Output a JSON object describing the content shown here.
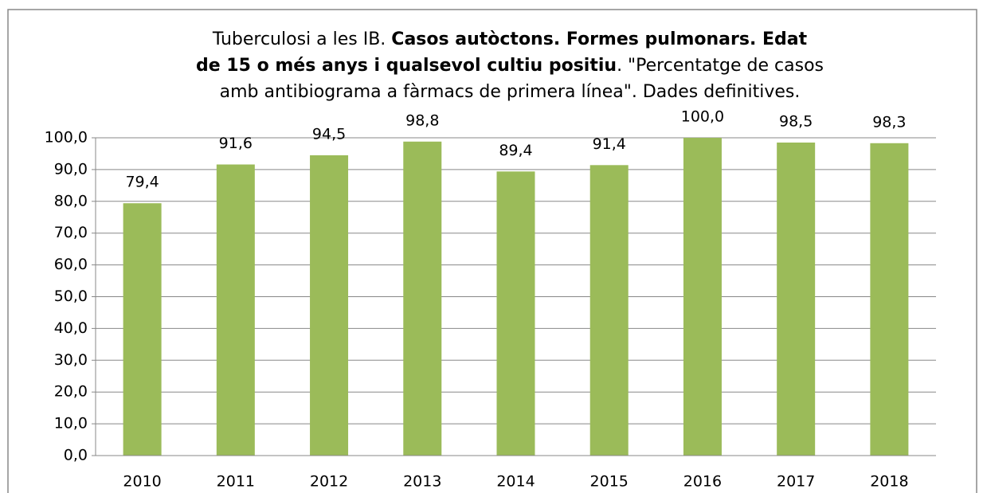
{
  "chart_data": {
    "type": "bar",
    "title_lines": [
      [
        {
          "text": "Tuberculosi a les IB. ",
          "bold": false
        },
        {
          "text": "Casos autòctons.  Formes pulmonars.  Edat",
          "bold": true
        }
      ],
      [
        {
          "text": "de 15 o més anys i qualsevol cultiu positiu",
          "bold": true
        },
        {
          "text": ". \"Percentatge de casos",
          "bold": false
        }
      ],
      [
        {
          "text": "amb antibiograma a fàrmacs de primera línea\". Dades definitives.",
          "bold": false
        }
      ]
    ],
    "categories": [
      "2010",
      "2011",
      "2012",
      "2013",
      "2014",
      "2015",
      "2016",
      "2017",
      "2018"
    ],
    "values": [
      79.4,
      91.6,
      94.5,
      98.8,
      89.4,
      91.4,
      100.0,
      98.5,
      98.3
    ],
    "value_labels": [
      "79,4",
      "91,6",
      "94,5",
      "98,8",
      "89,4",
      "91,4",
      "100,0",
      "98,5",
      "98,3"
    ],
    "color": "#9bbb59",
    "ylim": [
      0,
      100
    ],
    "yticks": [
      {
        "value": 0,
        "label": "0,0"
      },
      {
        "value": 10,
        "label": "10,0"
      },
      {
        "value": 20,
        "label": "20,0"
      },
      {
        "value": 30,
        "label": "30,0"
      },
      {
        "value": 40,
        "label": "40,0"
      },
      {
        "value": 50,
        "label": "50,0"
      },
      {
        "value": 60,
        "label": "60,0"
      },
      {
        "value": 70,
        "label": "70,0"
      },
      {
        "value": 80,
        "label": "80,0"
      },
      {
        "value": 90,
        "label": "90,0"
      },
      {
        "value": 100,
        "label": "100,0"
      }
    ],
    "grid": true
  }
}
